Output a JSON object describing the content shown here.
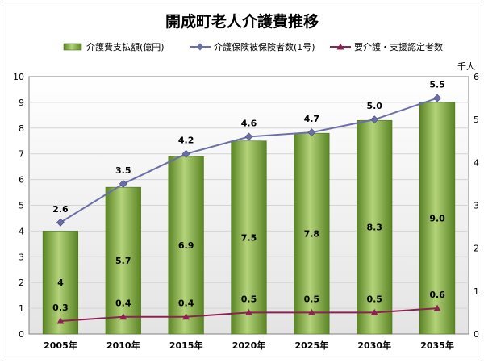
{
  "chart_data": {
    "type": "bar",
    "title": "開成町老人介護費推移",
    "categories": [
      "2005年",
      "2010年",
      "2015年",
      "2020年",
      "2025年",
      "2030年",
      "2035年"
    ],
    "series": [
      {
        "name": "介護費支払額(億円)",
        "type": "bar",
        "axis": "left",
        "values": [
          4,
          5.7,
          6.9,
          7.5,
          7.8,
          8.3,
          9.0
        ],
        "labels": [
          "4",
          "5.7",
          "6.9",
          "7.5",
          "7.8",
          "8.3",
          "9.0"
        ],
        "color": "#6b9a2f"
      },
      {
        "name": "介護保険被保険者数(1号)",
        "type": "line",
        "axis": "right",
        "values": [
          2.6,
          3.5,
          4.2,
          4.6,
          4.7,
          5.0,
          5.5
        ],
        "labels": [
          "2.6",
          "3.5",
          "4.2",
          "4.6",
          "4.7",
          "5.0",
          "5.5"
        ],
        "color": "#6a6fa8"
      },
      {
        "name": "要介護・支援認定者数",
        "type": "line",
        "axis": "right",
        "values": [
          0.3,
          0.4,
          0.4,
          0.5,
          0.5,
          0.5,
          0.6
        ],
        "labels": [
          "0.3",
          "0.4",
          "0.4",
          "0.5",
          "0.5",
          "0.5",
          "0.6"
        ],
        "color": "#8b2252"
      }
    ],
    "y_left": {
      "min": 0,
      "max": 10,
      "ticks": [
        "0",
        "1",
        "2",
        "3",
        "4",
        "5",
        "6",
        "7",
        "8",
        "9",
        "10"
      ]
    },
    "y_right": {
      "min": 0,
      "max": 6,
      "unit": "千人",
      "ticks": [
        "0",
        "1",
        "2",
        "3",
        "4",
        "5",
        "6"
      ]
    },
    "grid": true,
    "legend_position": "top"
  }
}
